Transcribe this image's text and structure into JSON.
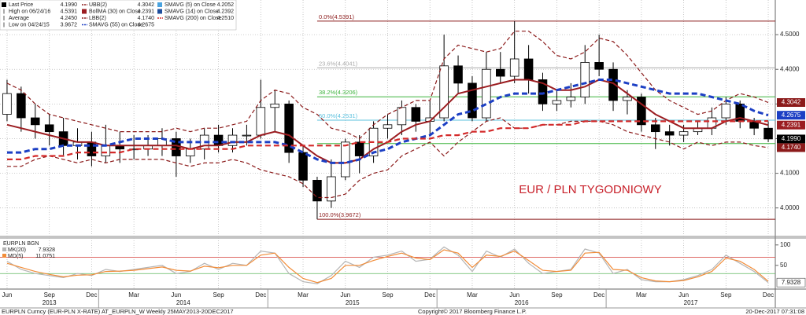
{
  "chart_data": {
    "type": "candlestick",
    "legend": [
      {
        "name": "Last Price",
        "value": "4.1990",
        "color": "#000000",
        "style": "square",
        "tag": true
      },
      {
        "name": "High on 06/24/16",
        "value": "4.5391",
        "color": "#555555",
        "style": "tick"
      },
      {
        "name": "Average",
        "value": "4.2450",
        "color": "#555555",
        "style": "tick"
      },
      {
        "name": "Low on 04/24/15",
        "value": "3.9672",
        "color": "#555555",
        "style": "tick"
      },
      {
        "name": "UBB(2)",
        "value": "4.3042",
        "color": "#8b1a1a",
        "style": "dash",
        "tag": true,
        "values": [
          4.36,
          4.34,
          4.3,
          4.27,
          4.26,
          4.25,
          4.24,
          4.23,
          4.22,
          4.22,
          4.22,
          4.22,
          4.23,
          4.22,
          4.23,
          4.23,
          4.24,
          4.25,
          4.31,
          4.34,
          4.33,
          4.29,
          4.27,
          4.23,
          4.22,
          4.2,
          4.24,
          4.27,
          4.29,
          4.31,
          4.31,
          4.43,
          4.47,
          4.46,
          4.45,
          4.46,
          4.51,
          4.51,
          4.48,
          4.44,
          4.43,
          4.45,
          4.49,
          4.48,
          4.44,
          4.39,
          4.34,
          4.31,
          4.29,
          4.27,
          4.28,
          4.31,
          4.33,
          4.32,
          4.3042
        ]
      },
      {
        "name": "BollMA (30) on Close",
        "value": "4.2391",
        "color": "#9b1c20",
        "style": "square",
        "tag": true,
        "width": 2,
        "values": [
          4.24,
          4.23,
          4.22,
          4.21,
          4.2,
          4.19,
          4.19,
          4.18,
          4.18,
          4.18,
          4.18,
          4.18,
          4.18,
          4.17,
          4.18,
          4.18,
          4.19,
          4.19,
          4.21,
          4.22,
          4.21,
          4.18,
          4.15,
          4.13,
          4.13,
          4.14,
          4.17,
          4.19,
          4.22,
          4.24,
          4.25,
          4.29,
          4.33,
          4.34,
          4.35,
          4.36,
          4.37,
          4.37,
          4.36,
          4.34,
          4.34,
          4.35,
          4.37,
          4.36,
          4.33,
          4.3,
          4.27,
          4.25,
          4.23,
          4.23,
          4.23,
          4.25,
          4.26,
          4.25,
          4.2391
        ]
      },
      {
        "name": "LBB(2)",
        "value": "4.1740",
        "color": "#8b1a1a",
        "style": "dash",
        "tag": true,
        "values": [
          4.12,
          4.12,
          4.14,
          4.15,
          4.14,
          4.13,
          4.14,
          4.13,
          4.14,
          4.14,
          4.14,
          4.14,
          4.13,
          4.12,
          4.13,
          4.13,
          4.14,
          4.13,
          4.11,
          4.1,
          4.09,
          4.07,
          4.03,
          4.03,
          4.04,
          4.08,
          4.1,
          4.11,
          4.15,
          4.17,
          4.19,
          4.15,
          4.19,
          4.22,
          4.25,
          4.26,
          4.23,
          4.23,
          4.24,
          4.24,
          4.25,
          4.25,
          4.25,
          4.24,
          4.22,
          4.21,
          4.2,
          4.19,
          4.17,
          4.19,
          4.18,
          4.19,
          4.19,
          4.18,
          4.174
        ]
      },
      {
        "name": "SMAVG (55) on Close",
        "value": "4.2675",
        "color": "#1c3fc4",
        "style": "dash",
        "tag": true,
        "width": 3,
        "values": [
          4.16,
          4.16,
          4.17,
          4.17,
          4.18,
          4.18,
          4.18,
          4.18,
          4.19,
          4.2,
          4.2,
          4.2,
          4.19,
          4.19,
          4.19,
          4.19,
          4.19,
          4.19,
          4.19,
          4.19,
          4.18,
          4.16,
          4.14,
          4.13,
          4.13,
          4.14,
          4.16,
          4.17,
          4.19,
          4.2,
          4.21,
          4.24,
          4.27,
          4.28,
          4.3,
          4.32,
          4.33,
          4.33,
          4.33,
          4.34,
          4.35,
          4.36,
          4.37,
          4.37,
          4.36,
          4.35,
          4.34,
          4.33,
          4.33,
          4.33,
          4.32,
          4.31,
          4.3,
          4.28,
          4.2675
        ]
      },
      {
        "name": "SMAVG (5) on Close",
        "value": "4.2052",
        "color": "#4aa3df",
        "style": "square"
      },
      {
        "name": "SMAVG (14) on Close",
        "value": "4.2392",
        "color": "#1f4e9c",
        "style": "square"
      },
      {
        "name": "SMAVG (200) on Close",
        "value": "4.2510",
        "color": "#d42a2a",
        "style": "dash",
        "width": 2.2,
        "values": [
          4.14,
          4.14,
          4.15,
          4.15,
          4.15,
          4.16,
          4.16,
          4.16,
          4.16,
          4.17,
          4.17,
          4.17,
          4.17,
          4.17,
          4.17,
          4.17,
          4.17,
          4.18,
          4.18,
          4.18,
          4.18,
          4.18,
          4.18,
          4.18,
          4.18,
          4.19,
          4.19,
          4.19,
          4.2,
          4.2,
          4.2,
          4.21,
          4.21,
          4.22,
          4.22,
          4.23,
          4.23,
          4.23,
          4.24,
          4.24,
          4.24,
          4.25,
          4.25,
          4.25,
          4.25,
          4.25,
          4.25,
          4.25,
          4.25,
          4.25,
          4.25,
          4.25,
          4.25,
          4.25,
          4.251
        ]
      }
    ],
    "open": [
      4.27,
      4.33,
      4.26,
      4.24,
      4.22,
      4.18,
      4.19,
      4.15,
      4.18,
      4.17,
      4.17,
      4.18,
      4.2,
      4.15,
      4.17,
      4.21,
      4.18,
      4.21,
      4.21,
      4.29,
      4.3,
      4.16,
      4.08,
      4.02,
      4.09,
      4.19,
      4.15,
      4.23,
      4.24,
      4.29,
      4.25,
      4.26,
      4.41,
      4.36,
      4.26,
      4.4,
      4.38,
      4.43,
      4.37,
      4.3,
      4.31,
      4.32,
      4.42,
      4.4,
      4.31,
      4.32,
      4.24,
      4.22,
      4.21,
      4.22,
      4.23,
      4.26,
      4.3,
      4.25,
      4.23
    ],
    "high": [
      4.37,
      4.35,
      4.3,
      4.27,
      4.26,
      4.23,
      4.22,
      4.24,
      4.22,
      4.21,
      4.21,
      4.23,
      4.22,
      4.2,
      4.23,
      4.24,
      4.23,
      4.24,
      4.37,
      4.34,
      4.31,
      4.18,
      4.09,
      4.14,
      4.2,
      4.21,
      4.25,
      4.27,
      4.31,
      4.3,
      4.31,
      4.5,
      4.44,
      4.38,
      4.45,
      4.45,
      4.5391,
      4.47,
      4.39,
      4.34,
      4.36,
      4.47,
      4.5,
      4.42,
      4.34,
      4.33,
      4.26,
      4.24,
      4.24,
      4.25,
      4.29,
      4.32,
      4.31,
      4.26,
      4.25
    ],
    "low": [
      4.25,
      4.22,
      4.2,
      4.18,
      4.15,
      4.14,
      4.12,
      4.13,
      4.13,
      4.14,
      4.15,
      4.15,
      4.09,
      4.13,
      4.14,
      4.16,
      4.16,
      4.18,
      4.2,
      4.22,
      4.13,
      4.06,
      3.9672,
      4.0,
      4.08,
      4.1,
      4.13,
      4.2,
      4.21,
      4.22,
      4.21,
      4.25,
      4.33,
      4.25,
      4.25,
      4.36,
      4.36,
      4.33,
      4.28,
      4.28,
      4.29,
      4.3,
      4.38,
      4.28,
      4.27,
      4.22,
      4.17,
      4.18,
      4.19,
      4.21,
      4.21,
      4.24,
      4.23,
      4.21,
      4.19
    ],
    "close": [
      4.33,
      4.26,
      4.24,
      4.22,
      4.18,
      4.19,
      4.15,
      4.18,
      4.17,
      4.17,
      4.18,
      4.2,
      4.15,
      4.17,
      4.21,
      4.18,
      4.21,
      4.21,
      4.29,
      4.3,
      4.16,
      4.08,
      4.02,
      4.09,
      4.19,
      4.15,
      4.23,
      4.24,
      4.29,
      4.25,
      4.26,
      4.41,
      4.36,
      4.26,
      4.4,
      4.38,
      4.43,
      4.37,
      4.3,
      4.31,
      4.32,
      4.42,
      4.4,
      4.31,
      4.32,
      4.24,
      4.22,
      4.21,
      4.22,
      4.23,
      4.26,
      4.3,
      4.25,
      4.23,
      4.199
    ],
    "categories": [
      "Jun",
      null,
      null,
      "Sep",
      null,
      null,
      "Dec",
      null,
      null,
      "Mar",
      null,
      null,
      "Jun",
      null,
      null,
      "Sep",
      null,
      null,
      "Dec",
      null,
      null,
      "Mar",
      null,
      null,
      "Jun",
      null,
      null,
      "Sep",
      null,
      null,
      "Dec",
      null,
      null,
      "Mar",
      null,
      null,
      "Jun",
      null,
      null,
      "Sep",
      null,
      null,
      "Dec",
      null,
      null,
      "Mar",
      null,
      null,
      "Jun",
      null,
      null,
      "Sep",
      null,
      null,
      "Dec"
    ],
    "years": [
      "2013",
      "2014",
      "2015",
      "2016",
      "2017"
    ],
    "ylim": [
      3.92,
      4.6
    ],
    "yticks": [
      {
        "value": 4.0,
        "label": "4.0000"
      },
      {
        "value": 4.1,
        "label": "4.1000"
      },
      {
        "value": 4.2,
        "label": "4.2000"
      },
      {
        "value": 4.3,
        "label": "4.3000"
      },
      {
        "value": 4.4,
        "label": "4.4000"
      },
      {
        "value": 4.5,
        "label": "4.5000"
      }
    ],
    "grid": true,
    "fibonacci": [
      {
        "label": "0.0%(4.5391)",
        "value": 4.5391,
        "color": "#8b1a1a"
      },
      {
        "label": "23.6%(4.4041)",
        "value": 4.4041,
        "color": "#aaaaaa"
      },
      {
        "label": "38.2%(4.3206)",
        "value": 4.3206,
        "color": "#3cb33c"
      },
      {
        "label": "50.0%(4.2531)",
        "value": 4.2531,
        "color": "#5bc0de"
      },
      {
        "value": 4.1857,
        "color": "#3cb33c"
      },
      {
        "label": "100.0%(3.9672)",
        "value": 3.9672,
        "color": "#8b1a1a"
      }
    ],
    "annotation": "EUR / PLN TYGODNIOWY",
    "lower_panel": {
      "type": "line",
      "legend_title": "EURPLN BGN",
      "ylim": [
        -8,
        115
      ],
      "yticks": [
        50,
        100
      ],
      "levels": [
        {
          "value": 70,
          "color": "#d9534f"
        },
        {
          "value": 30,
          "color": "#5cb85c"
        }
      ],
      "series": [
        {
          "name": "MK(20)",
          "value": "7.9328",
          "color": "#b5b5b5",
          "tag": true,
          "values": [
            60,
            40,
            30,
            25,
            20,
            30,
            25,
            40,
            35,
            40,
            45,
            50,
            30,
            35,
            55,
            40,
            55,
            50,
            85,
            80,
            30,
            10,
            5,
            25,
            60,
            45,
            70,
            75,
            85,
            60,
            65,
            95,
            75,
            35,
            85,
            70,
            90,
            55,
            30,
            35,
            40,
            90,
            80,
            30,
            40,
            15,
            10,
            10,
            15,
            25,
            40,
            75,
            55,
            35,
            7.9328
          ]
        },
        {
          "name": "MD(5)",
          "value": "11.0751",
          "color": "#f28c38",
          "values": [
            55,
            45,
            35,
            28,
            22,
            26,
            27,
            35,
            36,
            38,
            42,
            46,
            38,
            36,
            48,
            44,
            50,
            50,
            75,
            80,
            45,
            18,
            8,
            18,
            50,
            50,
            62,
            72,
            80,
            68,
            64,
            88,
            80,
            45,
            75,
            72,
            85,
            62,
            38,
            35,
            38,
            80,
            82,
            40,
            38,
            20,
            12,
            10,
            13,
            22,
            35,
            68,
            60,
            40,
            11.0751
          ]
        }
      ]
    }
  },
  "footer": {
    "left": "EURPLN Curncy (EUR-PLN X-RATE) AT_EURPLN_W  Weekly 25MAY2013-20DEC2017",
    "center": "Copyright© 2017 Bloomberg Finance L.P.",
    "right": "20-Dec-2017 07:31:08"
  }
}
